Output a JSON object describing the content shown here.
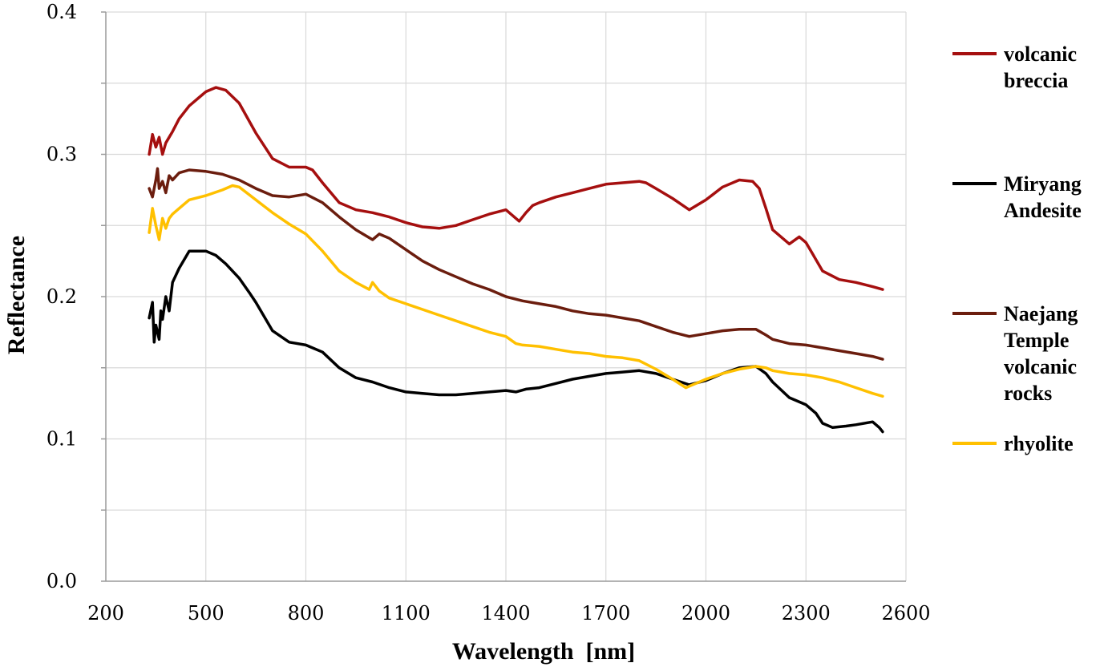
{
  "chart_data": {
    "type": "line",
    "xlabel": "Wavelength  [nm]",
    "ylabel": "Reflectance",
    "xlim": [
      200,
      2600
    ],
    "ylim": [
      0.0,
      0.4
    ],
    "x_ticks": [
      "200",
      "500",
      "800",
      "1100",
      "1400",
      "1700",
      "2000",
      "2300",
      "2600"
    ],
    "y_ticks": [
      "0.0",
      "0.1",
      "0.2",
      "0.3",
      "0.4"
    ],
    "grid": true,
    "legend_position": "right",
    "series": [
      {
        "name": "volcanic breccia",
        "label_lines": [
          "volcanic",
          "breccia"
        ],
        "color": "#a50f0f",
        "points": [
          [
            330,
            0.3
          ],
          [
            340,
            0.314
          ],
          [
            350,
            0.305
          ],
          [
            360,
            0.312
          ],
          [
            370,
            0.3
          ],
          [
            380,
            0.308
          ],
          [
            390,
            0.312
          ],
          [
            400,
            0.316
          ],
          [
            420,
            0.325
          ],
          [
            450,
            0.334
          ],
          [
            480,
            0.34
          ],
          [
            500,
            0.344
          ],
          [
            530,
            0.347
          ],
          [
            560,
            0.345
          ],
          [
            600,
            0.336
          ],
          [
            650,
            0.315
          ],
          [
            700,
            0.297
          ],
          [
            750,
            0.291
          ],
          [
            800,
            0.291
          ],
          [
            820,
            0.289
          ],
          [
            850,
            0.28
          ],
          [
            900,
            0.266
          ],
          [
            950,
            0.261
          ],
          [
            1000,
            0.259
          ],
          [
            1050,
            0.256
          ],
          [
            1100,
            0.252
          ],
          [
            1150,
            0.249
          ],
          [
            1200,
            0.248
          ],
          [
            1250,
            0.25
          ],
          [
            1300,
            0.254
          ],
          [
            1350,
            0.258
          ],
          [
            1400,
            0.261
          ],
          [
            1420,
            0.257
          ],
          [
            1440,
            0.253
          ],
          [
            1460,
            0.259
          ],
          [
            1480,
            0.264
          ],
          [
            1500,
            0.266
          ],
          [
            1550,
            0.27
          ],
          [
            1600,
            0.273
          ],
          [
            1650,
            0.276
          ],
          [
            1700,
            0.279
          ],
          [
            1750,
            0.28
          ],
          [
            1800,
            0.281
          ],
          [
            1820,
            0.28
          ],
          [
            1850,
            0.276
          ],
          [
            1900,
            0.269
          ],
          [
            1950,
            0.261
          ],
          [
            2000,
            0.268
          ],
          [
            2050,
            0.277
          ],
          [
            2100,
            0.282
          ],
          [
            2140,
            0.281
          ],
          [
            2160,
            0.276
          ],
          [
            2180,
            0.262
          ],
          [
            2200,
            0.247
          ],
          [
            2250,
            0.237
          ],
          [
            2280,
            0.242
          ],
          [
            2300,
            0.238
          ],
          [
            2320,
            0.23
          ],
          [
            2350,
            0.218
          ],
          [
            2400,
            0.212
          ],
          [
            2450,
            0.21
          ],
          [
            2500,
            0.207
          ],
          [
            2530,
            0.205
          ]
        ]
      },
      {
        "name": "Miryang Andesite",
        "label_lines": [
          "Miryang",
          "Andesite"
        ],
        "color": "#000000",
        "points": [
          [
            330,
            0.185
          ],
          [
            340,
            0.196
          ],
          [
            345,
            0.168
          ],
          [
            350,
            0.18
          ],
          [
            360,
            0.17
          ],
          [
            365,
            0.19
          ],
          [
            370,
            0.184
          ],
          [
            380,
            0.2
          ],
          [
            390,
            0.19
          ],
          [
            400,
            0.21
          ],
          [
            420,
            0.22
          ],
          [
            450,
            0.232
          ],
          [
            480,
            0.232
          ],
          [
            500,
            0.232
          ],
          [
            530,
            0.229
          ],
          [
            560,
            0.223
          ],
          [
            600,
            0.213
          ],
          [
            630,
            0.203
          ],
          [
            650,
            0.196
          ],
          [
            700,
            0.176
          ],
          [
            750,
            0.168
          ],
          [
            800,
            0.166
          ],
          [
            850,
            0.161
          ],
          [
            900,
            0.15
          ],
          [
            950,
            0.143
          ],
          [
            1000,
            0.14
          ],
          [
            1050,
            0.136
          ],
          [
            1100,
            0.133
          ],
          [
            1150,
            0.132
          ],
          [
            1200,
            0.131
          ],
          [
            1250,
            0.131
          ],
          [
            1300,
            0.132
          ],
          [
            1350,
            0.133
          ],
          [
            1400,
            0.134
          ],
          [
            1430,
            0.133
          ],
          [
            1460,
            0.135
          ],
          [
            1500,
            0.136
          ],
          [
            1550,
            0.139
          ],
          [
            1600,
            0.142
          ],
          [
            1650,
            0.144
          ],
          [
            1700,
            0.146
          ],
          [
            1750,
            0.147
          ],
          [
            1800,
            0.148
          ],
          [
            1850,
            0.146
          ],
          [
            1900,
            0.142
          ],
          [
            1950,
            0.138
          ],
          [
            2000,
            0.141
          ],
          [
            2050,
            0.146
          ],
          [
            2100,
            0.15
          ],
          [
            2150,
            0.151
          ],
          [
            2180,
            0.146
          ],
          [
            2200,
            0.14
          ],
          [
            2250,
            0.129
          ],
          [
            2300,
            0.124
          ],
          [
            2330,
            0.118
          ],
          [
            2350,
            0.111
          ],
          [
            2380,
            0.108
          ],
          [
            2420,
            0.109
          ],
          [
            2450,
            0.11
          ],
          [
            2500,
            0.112
          ],
          [
            2520,
            0.108
          ],
          [
            2530,
            0.105
          ]
        ]
      },
      {
        "name": "Naejang Temple volcanic rocks",
        "label_lines": [
          "Naejang",
          "Temple",
          "volcanic",
          "rocks"
        ],
        "color": "#6b1d0e",
        "points": [
          [
            330,
            0.276
          ],
          [
            340,
            0.27
          ],
          [
            350,
            0.282
          ],
          [
            355,
            0.29
          ],
          [
            360,
            0.276
          ],
          [
            370,
            0.281
          ],
          [
            380,
            0.273
          ],
          [
            390,
            0.285
          ],
          [
            400,
            0.282
          ],
          [
            420,
            0.287
          ],
          [
            450,
            0.289
          ],
          [
            500,
            0.288
          ],
          [
            550,
            0.286
          ],
          [
            600,
            0.282
          ],
          [
            650,
            0.276
          ],
          [
            700,
            0.271
          ],
          [
            750,
            0.27
          ],
          [
            800,
            0.272
          ],
          [
            850,
            0.266
          ],
          [
            900,
            0.256
          ],
          [
            950,
            0.247
          ],
          [
            1000,
            0.24
          ],
          [
            1020,
            0.244
          ],
          [
            1050,
            0.241
          ],
          [
            1100,
            0.233
          ],
          [
            1150,
            0.225
          ],
          [
            1200,
            0.219
          ],
          [
            1250,
            0.214
          ],
          [
            1300,
            0.209
          ],
          [
            1350,
            0.205
          ],
          [
            1400,
            0.2
          ],
          [
            1450,
            0.197
          ],
          [
            1500,
            0.195
          ],
          [
            1550,
            0.193
          ],
          [
            1600,
            0.19
          ],
          [
            1650,
            0.188
          ],
          [
            1700,
            0.187
          ],
          [
            1750,
            0.185
          ],
          [
            1800,
            0.183
          ],
          [
            1850,
            0.179
          ],
          [
            1900,
            0.175
          ],
          [
            1950,
            0.172
          ],
          [
            2000,
            0.174
          ],
          [
            2050,
            0.176
          ],
          [
            2100,
            0.177
          ],
          [
            2150,
            0.177
          ],
          [
            2180,
            0.173
          ],
          [
            2200,
            0.17
          ],
          [
            2250,
            0.167
          ],
          [
            2300,
            0.166
          ],
          [
            2350,
            0.164
          ],
          [
            2400,
            0.162
          ],
          [
            2450,
            0.16
          ],
          [
            2500,
            0.158
          ],
          [
            2530,
            0.156
          ]
        ]
      },
      {
        "name": "rhyolite",
        "label_lines": [
          "rhyolite"
        ],
        "color": "#ffc000",
        "points": [
          [
            330,
            0.245
          ],
          [
            340,
            0.262
          ],
          [
            350,
            0.25
          ],
          [
            360,
            0.24
          ],
          [
            370,
            0.255
          ],
          [
            380,
            0.248
          ],
          [
            390,
            0.255
          ],
          [
            400,
            0.258
          ],
          [
            420,
            0.262
          ],
          [
            450,
            0.268
          ],
          [
            500,
            0.271
          ],
          [
            550,
            0.275
          ],
          [
            580,
            0.278
          ],
          [
            600,
            0.277
          ],
          [
            650,
            0.268
          ],
          [
            700,
            0.259
          ],
          [
            750,
            0.251
          ],
          [
            800,
            0.244
          ],
          [
            850,
            0.232
          ],
          [
            900,
            0.218
          ],
          [
            950,
            0.21
          ],
          [
            990,
            0.205
          ],
          [
            1000,
            0.21
          ],
          [
            1020,
            0.204
          ],
          [
            1050,
            0.199
          ],
          [
            1100,
            0.195
          ],
          [
            1150,
            0.191
          ],
          [
            1200,
            0.187
          ],
          [
            1250,
            0.183
          ],
          [
            1300,
            0.179
          ],
          [
            1350,
            0.175
          ],
          [
            1400,
            0.172
          ],
          [
            1430,
            0.167
          ],
          [
            1450,
            0.166
          ],
          [
            1500,
            0.165
          ],
          [
            1550,
            0.163
          ],
          [
            1600,
            0.161
          ],
          [
            1650,
            0.16
          ],
          [
            1700,
            0.158
          ],
          [
            1750,
            0.157
          ],
          [
            1800,
            0.155
          ],
          [
            1850,
            0.149
          ],
          [
            1900,
            0.142
          ],
          [
            1940,
            0.136
          ],
          [
            1950,
            0.137
          ],
          [
            2000,
            0.142
          ],
          [
            2050,
            0.146
          ],
          [
            2100,
            0.149
          ],
          [
            2150,
            0.151
          ],
          [
            2180,
            0.15
          ],
          [
            2200,
            0.148
          ],
          [
            2250,
            0.146
          ],
          [
            2300,
            0.145
          ],
          [
            2350,
            0.143
          ],
          [
            2400,
            0.14
          ],
          [
            2450,
            0.136
          ],
          [
            2500,
            0.132
          ],
          [
            2530,
            0.13
          ]
        ]
      }
    ]
  }
}
